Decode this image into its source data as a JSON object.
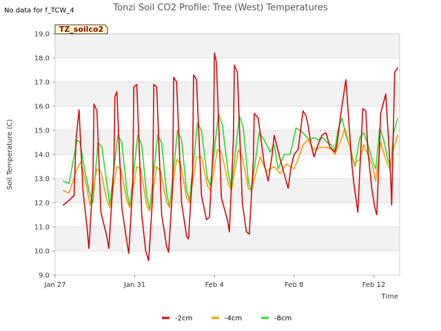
{
  "chart_data": {
    "type": "line",
    "title": "Tonzi Soil CO2 Profile: Tree (West) Temperatures",
    "no_data_note": "No data for f_TCW_4",
    "badge": "TZ_soilco2",
    "xlabel": "Time",
    "ylabel": "Soil Temperature (C)",
    "xlim": [
      0,
      17.3
    ],
    "ylim": [
      9.0,
      19.0
    ],
    "yticks": [
      "9.0",
      "10.0",
      "11.0",
      "12.0",
      "13.0",
      "14.0",
      "15.0",
      "16.0",
      "17.0",
      "18.0",
      "19.0"
    ],
    "xticks": [
      {
        "label": "Jan 27",
        "day": 0
      },
      {
        "label": "Jan 31",
        "day": 4
      },
      {
        "label": "Feb 4",
        "day": 8
      },
      {
        "label": "Feb 8",
        "day": 12
      },
      {
        "label": "Feb 12",
        "day": 16
      }
    ],
    "grid": true,
    "legend_position": "bottom-center",
    "series": [
      {
        "name": "-2cm",
        "color": "#dd0000",
        "x": [
          0.4,
          0.7,
          0.95,
          1.05,
          1.2,
          1.4,
          1.6,
          1.7,
          1.9,
          1.95,
          2.1,
          2.3,
          2.6,
          2.7,
          2.95,
          3.0,
          3.1,
          3.35,
          3.6,
          3.7,
          3.9,
          3.95,
          4.1,
          4.35,
          4.55,
          4.7,
          4.9,
          4.95,
          5.1,
          5.35,
          5.6,
          5.7,
          5.9,
          5.95,
          6.1,
          6.35,
          6.6,
          6.7,
          6.9,
          6.95,
          7.1,
          7.35,
          7.6,
          7.75,
          7.95,
          8.0,
          8.1,
          8.35,
          8.65,
          8.75,
          8.95,
          9.0,
          9.15,
          9.4,
          9.6,
          9.75,
          9.95,
          10.0,
          10.2,
          10.5,
          10.7,
          10.9,
          11.0,
          11.3,
          11.7,
          11.85,
          12.0,
          12.2,
          12.45,
          12.6,
          12.7,
          12.85,
          13.0,
          13.2,
          13.4,
          13.6,
          13.8,
          14.05,
          14.15,
          14.35,
          14.6,
          14.9,
          15.0,
          15.2,
          15.45,
          15.6,
          15.7,
          15.9,
          16.05,
          16.15,
          16.35,
          16.6,
          16.75,
          16.85,
          16.9,
          17.05,
          17.2
        ],
        "values": [
          11.9,
          12.1,
          12.3,
          14.6,
          15.85,
          12.5,
          11.0,
          10.1,
          13.0,
          16.1,
          15.8,
          11.6,
          10.6,
          10.1,
          13.5,
          16.4,
          16.6,
          11.8,
          10.4,
          9.9,
          12.8,
          16.8,
          16.9,
          11.5,
          10.0,
          9.6,
          12.3,
          16.9,
          16.8,
          11.5,
          10.2,
          9.95,
          12.6,
          17.2,
          17.0,
          12.0,
          10.6,
          10.5,
          13.3,
          17.3,
          17.1,
          12.3,
          11.3,
          11.4,
          14.5,
          18.2,
          17.8,
          12.2,
          11.3,
          10.8,
          14.6,
          17.7,
          17.4,
          12.0,
          10.8,
          10.7,
          13.7,
          15.7,
          15.5,
          13.6,
          12.9,
          14.0,
          14.8,
          13.8,
          12.6,
          13.5,
          14.0,
          14.2,
          15.8,
          15.6,
          15.2,
          14.4,
          13.9,
          14.4,
          14.8,
          14.9,
          14.3,
          14.1,
          14.4,
          15.7,
          17.1,
          13.6,
          12.8,
          11.6,
          15.9,
          15.8,
          14.2,
          12.6,
          11.8,
          11.5,
          15.7,
          16.5,
          14.5,
          13.0,
          11.9,
          17.4,
          17.6
        ]
      },
      {
        "name": "-4cm",
        "color": "#ff9900",
        "x": [
          0.4,
          0.7,
          1.1,
          1.3,
          1.6,
          1.75,
          2.1,
          2.3,
          2.6,
          2.75,
          3.1,
          3.3,
          3.6,
          3.75,
          4.1,
          4.3,
          4.6,
          4.75,
          5.1,
          5.3,
          5.6,
          5.75,
          6.1,
          6.3,
          6.6,
          6.75,
          7.1,
          7.35,
          7.65,
          7.8,
          8.15,
          8.35,
          8.7,
          8.85,
          9.2,
          9.4,
          9.7,
          9.85,
          10.3,
          10.6,
          11.0,
          11.3,
          11.6,
          12.0,
          12.2,
          12.45,
          12.7,
          13.0,
          13.3,
          13.6,
          13.9,
          14.05,
          14.35,
          14.55,
          14.8,
          15.0,
          15.3,
          15.5,
          15.7,
          15.95,
          16.1,
          16.35,
          16.6,
          16.8,
          16.95,
          17.2
        ],
        "values": [
          12.5,
          12.4,
          13.4,
          13.7,
          12.6,
          11.9,
          13.4,
          13.3,
          12.1,
          11.8,
          13.5,
          13.4,
          12.1,
          11.8,
          13.5,
          13.4,
          11.9,
          11.65,
          13.5,
          13.3,
          12.0,
          11.8,
          13.8,
          13.6,
          12.2,
          12.0,
          13.9,
          13.9,
          12.7,
          12.5,
          14.2,
          14.1,
          12.8,
          12.5,
          14.2,
          13.9,
          12.6,
          12.5,
          13.9,
          13.3,
          13.5,
          13.2,
          13.6,
          13.4,
          13.8,
          14.4,
          14.6,
          14.2,
          14.3,
          14.3,
          14.2,
          14.0,
          14.6,
          15.1,
          14.3,
          13.6,
          13.8,
          14.4,
          14.0,
          13.5,
          12.9,
          14.5,
          13.8,
          13.4,
          14.1,
          14.8
        ]
      },
      {
        "name": "-8cm",
        "color": "#22dd22",
        "x": [
          0.4,
          0.7,
          1.1,
          1.25,
          1.5,
          1.7,
          1.9,
          2.15,
          2.35,
          2.6,
          2.75,
          3.15,
          3.35,
          3.6,
          3.75,
          4.15,
          4.35,
          4.6,
          4.75,
          5.15,
          5.35,
          5.6,
          5.75,
          6.15,
          6.35,
          6.6,
          6.75,
          7.15,
          7.35,
          7.65,
          7.8,
          8.2,
          8.4,
          8.7,
          8.85,
          9.25,
          9.45,
          9.7,
          9.85,
          10.25,
          10.5,
          10.8,
          11.0,
          11.2,
          11.5,
          11.8,
          12.1,
          12.3,
          12.55,
          12.75,
          13.0,
          13.2,
          13.45,
          13.65,
          13.85,
          14.05,
          14.2,
          14.4,
          14.6,
          14.85,
          15.05,
          15.3,
          15.5,
          15.75,
          15.95,
          16.1,
          16.3,
          16.5,
          16.7,
          16.85,
          17.0,
          17.2
        ],
        "values": [
          12.9,
          12.8,
          14.6,
          14.5,
          13.3,
          12.5,
          12.0,
          14.5,
          14.3,
          12.8,
          11.9,
          14.8,
          14.5,
          12.5,
          11.8,
          14.8,
          14.4,
          12.3,
          11.7,
          14.8,
          14.5,
          12.4,
          11.8,
          15.0,
          14.6,
          12.5,
          12.1,
          15.3,
          15.0,
          13.0,
          12.7,
          15.7,
          15.2,
          13.2,
          12.6,
          15.6,
          15.1,
          12.9,
          12.5,
          14.9,
          14.6,
          14.1,
          14.4,
          13.4,
          14.0,
          14.0,
          15.1,
          15.0,
          14.8,
          14.6,
          14.7,
          14.6,
          14.7,
          14.5,
          14.4,
          14.2,
          15.0,
          15.5,
          14.8,
          14.2,
          13.5,
          14.7,
          14.9,
          14.3,
          13.7,
          13.4,
          15.1,
          14.6,
          13.8,
          13.5,
          14.9,
          15.5
        ]
      }
    ]
  }
}
